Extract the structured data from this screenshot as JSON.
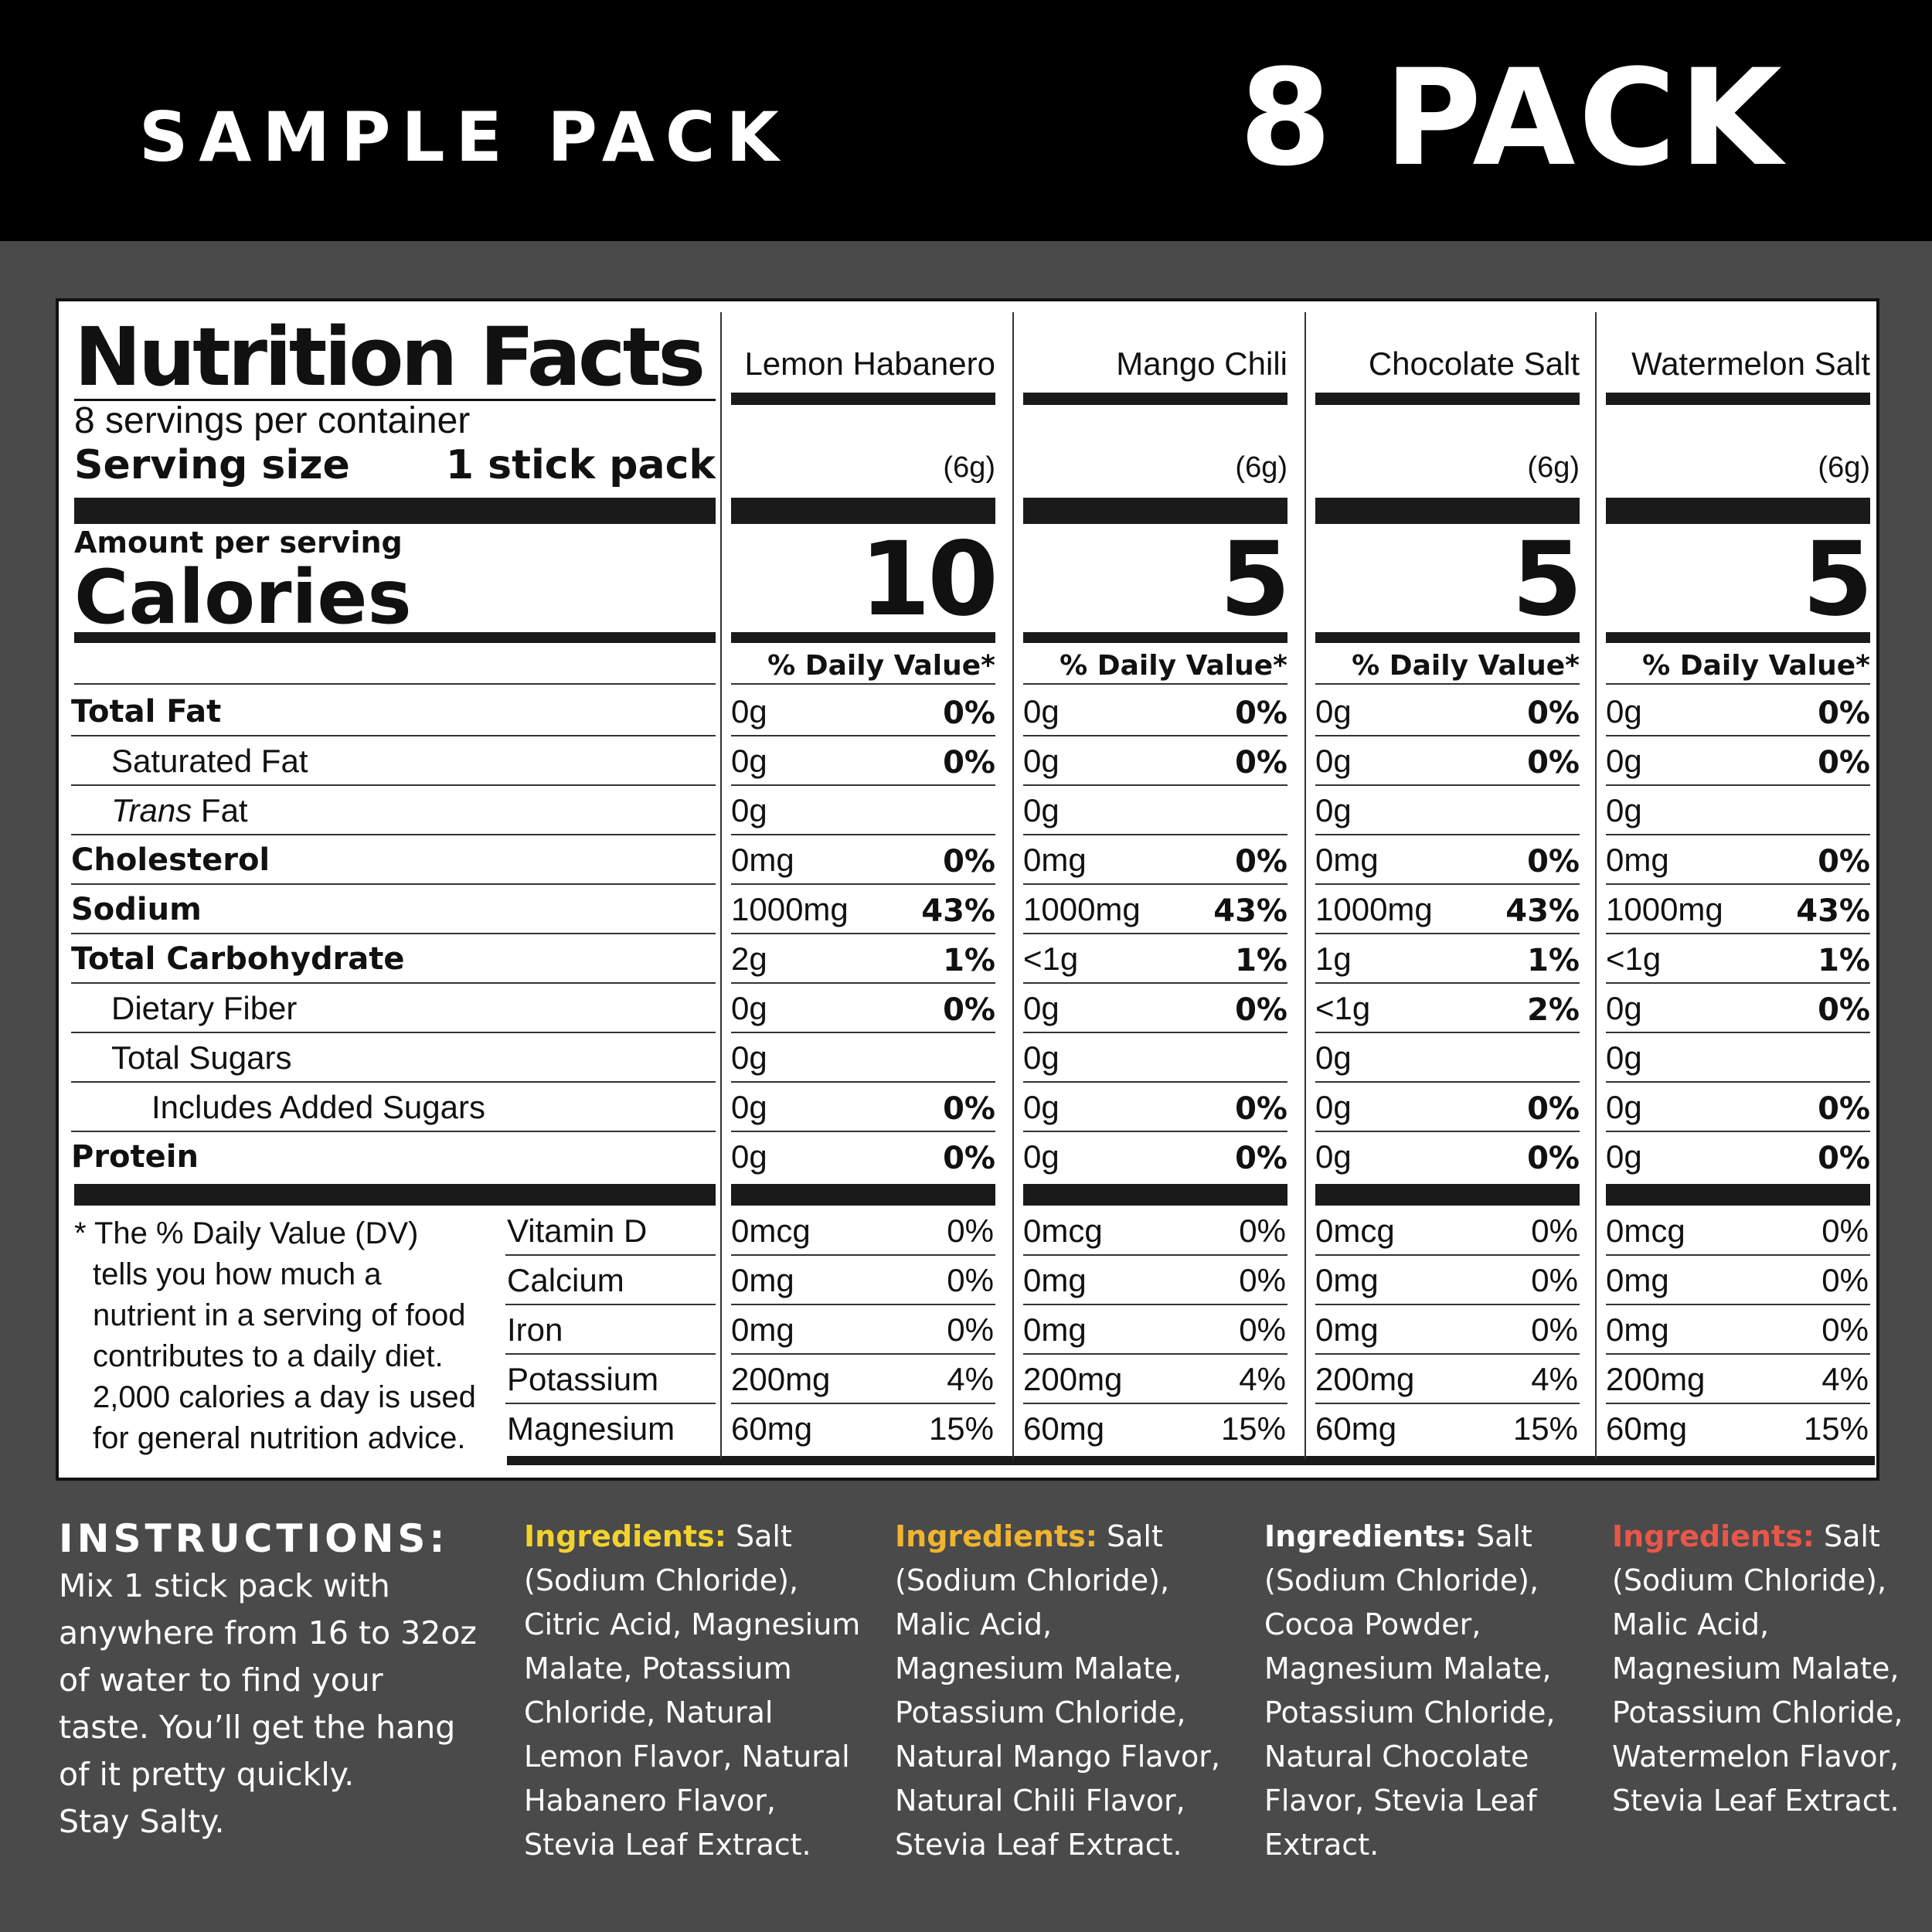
{
  "banner": {
    "left_title": "SAMPLE PACK",
    "right_title": "8 PACK"
  },
  "label": {
    "title": "Nutrition Facts",
    "servings": "8 servings per container",
    "serving_size_label": "Serving size",
    "serving_size_value": "1 stick pack",
    "amount_per_serving": "Amount per serving",
    "calories_label": "Calories",
    "dv_header": "% Daily Value*",
    "nutrients": [
      "Total Fat",
      "Saturated Fat",
      "Trans",
      "Cholesterol",
      "Sodium",
      "Total Carbohydrate",
      "Dietary Fiber",
      "Total Sugars",
      "Includes Added Sugars",
      "Protein"
    ],
    "trans_suffix": " Fat",
    "vitamins": [
      "Vitamin D",
      "Calcium",
      "Iron",
      "Potassium",
      "Magnesium"
    ],
    "footnote": [
      "* The % Daily Value (DV)",
      "tells you how much a",
      "nutrient in a serving of food",
      "contributes to a daily diet.",
      "2,000 calories a day is used",
      "for general nutrition advice."
    ]
  },
  "flavors": [
    {
      "name": "Lemon Habanero",
      "serving": "(6g)",
      "calories": "10",
      "rows": [
        [
          "0g",
          "0%"
        ],
        [
          "0g",
          "0%"
        ],
        [
          "0g",
          ""
        ],
        [
          "0mg",
          "0%"
        ],
        [
          "1000mg",
          "43%"
        ],
        [
          "2g",
          "1%"
        ],
        [
          "0g",
          "0%"
        ],
        [
          "0g",
          ""
        ],
        [
          "0g",
          "0%"
        ],
        [
          "0g",
          "0%"
        ]
      ],
      "vitamins": [
        [
          "0mcg",
          "0%"
        ],
        [
          "0mg",
          "0%"
        ],
        [
          "0mg",
          "0%"
        ],
        [
          "200mg",
          "4%"
        ],
        [
          "60mg",
          "15%"
        ]
      ]
    },
    {
      "name": "Mango Chili",
      "serving": "(6g)",
      "calories": "5",
      "rows": [
        [
          "0g",
          "0%"
        ],
        [
          "0g",
          "0%"
        ],
        [
          "0g",
          ""
        ],
        [
          "0mg",
          "0%"
        ],
        [
          "1000mg",
          "43%"
        ],
        [
          "<1g",
          "1%"
        ],
        [
          "0g",
          "0%"
        ],
        [
          "0g",
          ""
        ],
        [
          "0g",
          "0%"
        ],
        [
          "0g",
          "0%"
        ]
      ],
      "vitamins": [
        [
          "0mcg",
          "0%"
        ],
        [
          "0mg",
          "0%"
        ],
        [
          "0mg",
          "0%"
        ],
        [
          "200mg",
          "4%"
        ],
        [
          "60mg",
          "15%"
        ]
      ]
    },
    {
      "name": "Chocolate Salt",
      "serving": "(6g)",
      "calories": "5",
      "rows": [
        [
          "0g",
          "0%"
        ],
        [
          "0g",
          "0%"
        ],
        [
          "0g",
          ""
        ],
        [
          "0mg",
          "0%"
        ],
        [
          "1000mg",
          "43%"
        ],
        [
          "1g",
          "1%"
        ],
        [
          "<1g",
          "2%"
        ],
        [
          "0g",
          ""
        ],
        [
          "0g",
          "0%"
        ],
        [
          "0g",
          "0%"
        ]
      ],
      "vitamins": [
        [
          "0mcg",
          "0%"
        ],
        [
          "0mg",
          "0%"
        ],
        [
          "0mg",
          "0%"
        ],
        [
          "200mg",
          "4%"
        ],
        [
          "60mg",
          "15%"
        ]
      ]
    },
    {
      "name": "Watermelon Salt",
      "serving": "(6g)",
      "calories": "5",
      "rows": [
        [
          "0g",
          "0%"
        ],
        [
          "0g",
          "0%"
        ],
        [
          "0g",
          ""
        ],
        [
          "0mg",
          "0%"
        ],
        [
          "1000mg",
          "43%"
        ],
        [
          "<1g",
          "1%"
        ],
        [
          "0g",
          "0%"
        ],
        [
          "0g",
          ""
        ],
        [
          "0g",
          "0%"
        ],
        [
          "0g",
          "0%"
        ]
      ],
      "vitamins": [
        [
          "0mcg",
          "0%"
        ],
        [
          "0mg",
          "0%"
        ],
        [
          "0mg",
          "0%"
        ],
        [
          "200mg",
          "4%"
        ],
        [
          "60mg",
          "15%"
        ]
      ]
    }
  ],
  "instructions": {
    "heading": "INSTRUCTIONS:",
    "lines": [
      "Mix 1 stick pack with",
      "anywhere from 16 to 32oz",
      "of water to find your",
      "taste. You’ll get the hang",
      "of it pretty quickly.",
      "Stay Salty."
    ]
  },
  "ingredients": [
    {
      "label": "Ingredients:",
      "color": "#f2d22e",
      "lines": [
        " Salt",
        "(Sodium Chloride),",
        "Citric Acid, Magnesium",
        "Malate, Potassium",
        "Chloride, Natural",
        "Lemon Flavor, Natural",
        "Habanero Flavor,",
        "Stevia Leaf Extract."
      ]
    },
    {
      "label": "Ingredients:",
      "color": "#f0b431",
      "lines": [
        " Salt",
        "(Sodium Chloride),",
        "Malic Acid,",
        "Magnesium Malate,",
        "Potassium Chloride,",
        "Natural Mango Flavor,",
        "Natural Chili Flavor,",
        "Stevia Leaf Extract."
      ]
    },
    {
      "label": "Ingredients:",
      "color": "#ffffff",
      "lines": [
        " Salt",
        "(Sodium Chloride),",
        "Cocoa Powder,",
        "Magnesium Malate,",
        "Potassium Chloride,",
        "Natural Chocolate",
        "Flavor, Stevia Leaf",
        "Extract."
      ]
    },
    {
      "label": "Ingredients:",
      "color": "#e8574a",
      "lines": [
        " Salt",
        "(Sodium Chloride),",
        "Malic Acid,",
        "Magnesium Malate,",
        "Potassium Chloride,",
        "Watermelon Flavor,",
        "Stevia Leaf Extract."
      ]
    }
  ]
}
